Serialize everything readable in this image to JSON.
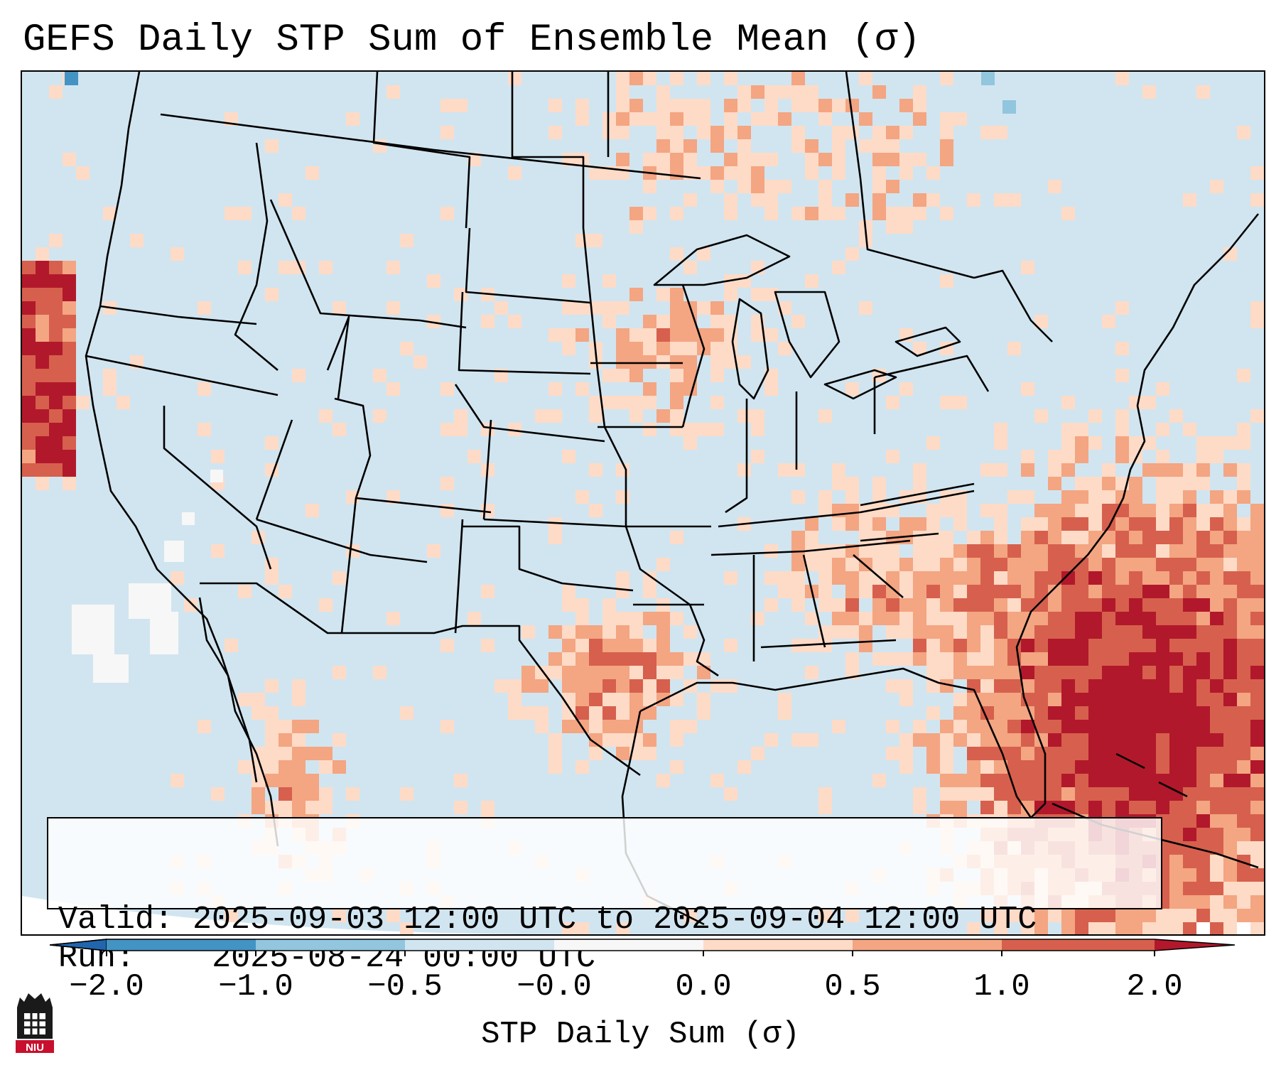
{
  "map": {
    "title": "GEFS Daily STP Sum of Ensemble Mean (σ)",
    "valid_label": "Valid:",
    "valid_value": "2025-09-03 12:00 UTC to 2025-09-04 12:00 UTC",
    "run_label": "Run:",
    "run_value": "2025-08-24 00:00 UTC",
    "colors": {
      "ocean_background": "#d1e5f0",
      "land_base": "#d1e5f0",
      "border_color": "#000000"
    }
  },
  "colorbar": {
    "label": "STP Daily Sum (σ)",
    "ticks": [
      "−2.0",
      "−1.0",
      "−0.5",
      "−0.0",
      "0.0",
      "0.5",
      "1.0",
      "2.0"
    ],
    "bins": [
      {
        "color": "#2166ac"
      },
      {
        "color": "#4393c3"
      },
      {
        "color": "#92c5de"
      },
      {
        "color": "#d1e5f0"
      },
      {
        "color": "#f7f7f7"
      },
      {
        "color": "#fddbc7"
      },
      {
        "color": "#f4a582"
      },
      {
        "color": "#d6604d"
      },
      {
        "color": "#b2182b"
      }
    ]
  },
  "logo": {
    "text": "NIU",
    "color": "#c8102e"
  }
}
